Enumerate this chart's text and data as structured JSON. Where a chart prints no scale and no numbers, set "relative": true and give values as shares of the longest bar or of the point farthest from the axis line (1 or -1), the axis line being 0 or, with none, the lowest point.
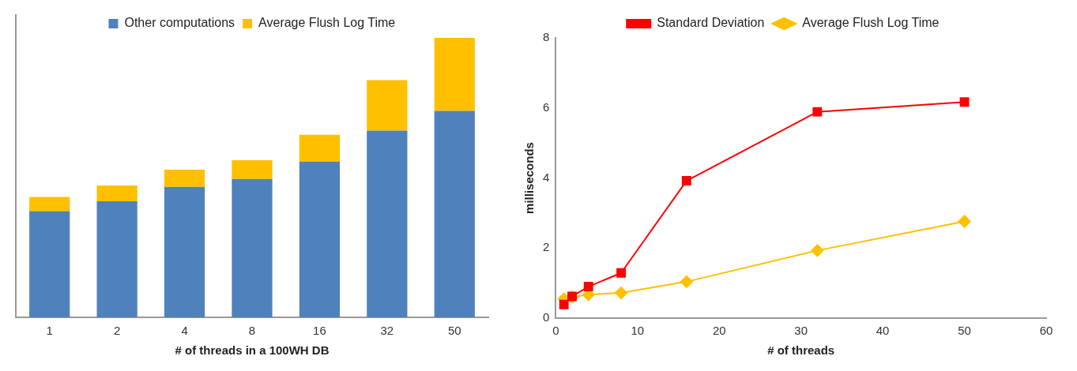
{
  "chart_data": [
    {
      "type": "bar",
      "xlabel": "# of threads in a 100WH DB",
      "categories": [
        "1",
        "2",
        "4",
        "8",
        "16",
        "32",
        "50"
      ],
      "stacked": true,
      "relative": true,
      "legend": "top",
      "grid": false,
      "series": [
        {
          "name": "Other computations",
          "color": "#4f81bd",
          "values": [
            0.38,
            0.415,
            0.467,
            0.495,
            0.557,
            0.668,
            0.739
          ]
        },
        {
          "name": "Average Flush Log Time",
          "color": "#ffc000",
          "values": [
            0.051,
            0.057,
            0.061,
            0.067,
            0.096,
            0.181,
            0.261
          ]
        }
      ]
    },
    {
      "type": "line",
      "xlabel": "# of threads",
      "ylabel": "milliseconds",
      "xlim": [
        0,
        60
      ],
      "xticks": [
        0,
        10,
        20,
        30,
        40,
        50,
        60
      ],
      "ylim": [
        0,
        8
      ],
      "yticks": [
        0,
        2,
        4,
        6,
        8
      ],
      "legend": "top",
      "grid": false,
      "line_style": "solid",
      "series": [
        {
          "name": "Average Flush Log Time",
          "color": "#ffc000",
          "marker": "diamond",
          "x": [
            1,
            2,
            4,
            8,
            16,
            32,
            50
          ],
          "values": [
            0.55,
            0.6,
            0.67,
            0.72,
            1.04,
            1.93,
            2.76
          ]
        },
        {
          "name": "Standard Deviation",
          "color": "#ff0000",
          "marker": "square",
          "x": [
            1,
            2,
            4,
            8,
            16,
            32,
            50
          ],
          "values": [
            0.39,
            0.62,
            0.9,
            1.29,
            3.92,
            5.89,
            6.17
          ]
        }
      ]
    }
  ]
}
